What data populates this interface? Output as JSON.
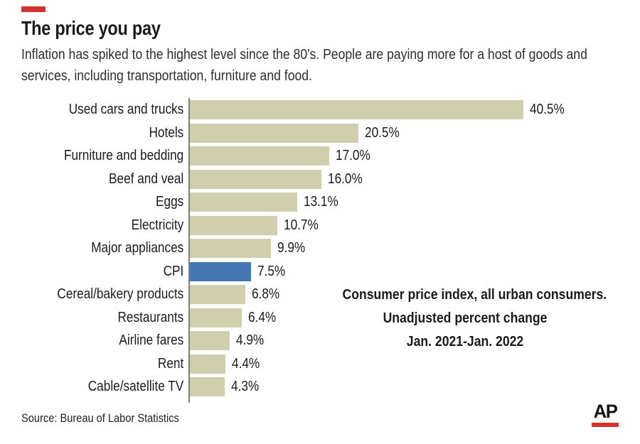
{
  "header": {
    "title": "The price you pay",
    "subtitle_lines": [
      "Inflation has spiked to the highest level since the 80's. People are paying more for a host of goods and",
      "services, including transportation, furniture and food."
    ]
  },
  "chart_data": {
    "type": "bar",
    "orientation": "horizontal",
    "title": "The price you pay",
    "xlabel": "Unadjusted percent change",
    "xlim": [
      0,
      42
    ],
    "grid": false,
    "categories": [
      "Used cars and trucks",
      "Hotels",
      "Furniture and bedding",
      "Beef and veal",
      "Eggs",
      "Electricity",
      "Major appliances",
      "CPI",
      "Cereal/bakery products",
      "Restaurants",
      "Airline fares",
      "Rent",
      "Cable/satellite TV"
    ],
    "values": [
      40.5,
      20.5,
      17.0,
      16.0,
      13.1,
      10.7,
      9.9,
      7.5,
      6.8,
      6.4,
      4.9,
      4.4,
      4.3
    ],
    "value_labels": [
      "40.5%",
      "20.5%",
      "17.0%",
      "16.0%",
      "13.1%",
      "10.7%",
      "9.9%",
      "7.5%",
      "6.8%",
      "6.4%",
      "4.9%",
      "4.4%",
      "4.3%"
    ],
    "highlight_index": 7,
    "highlight_category": "CPI",
    "bar_color": "#cfcfae",
    "highlight_color": "#4677b5",
    "annotation_lines": [
      "Consumer price index, all urban consumers.",
      "Unadjusted percent change",
      "Jan. 2021-Jan. 2022"
    ]
  },
  "footer": {
    "source": "Source: Bureau of Labor Statistics",
    "logo_text": "AP"
  },
  "colors": {
    "accent_red": "#d0342c",
    "bar_beige": "#cfcfae",
    "cpi_blue": "#4677b5",
    "axis_gray": "#7d7d7d",
    "text_dark": "#1b1b1b"
  }
}
